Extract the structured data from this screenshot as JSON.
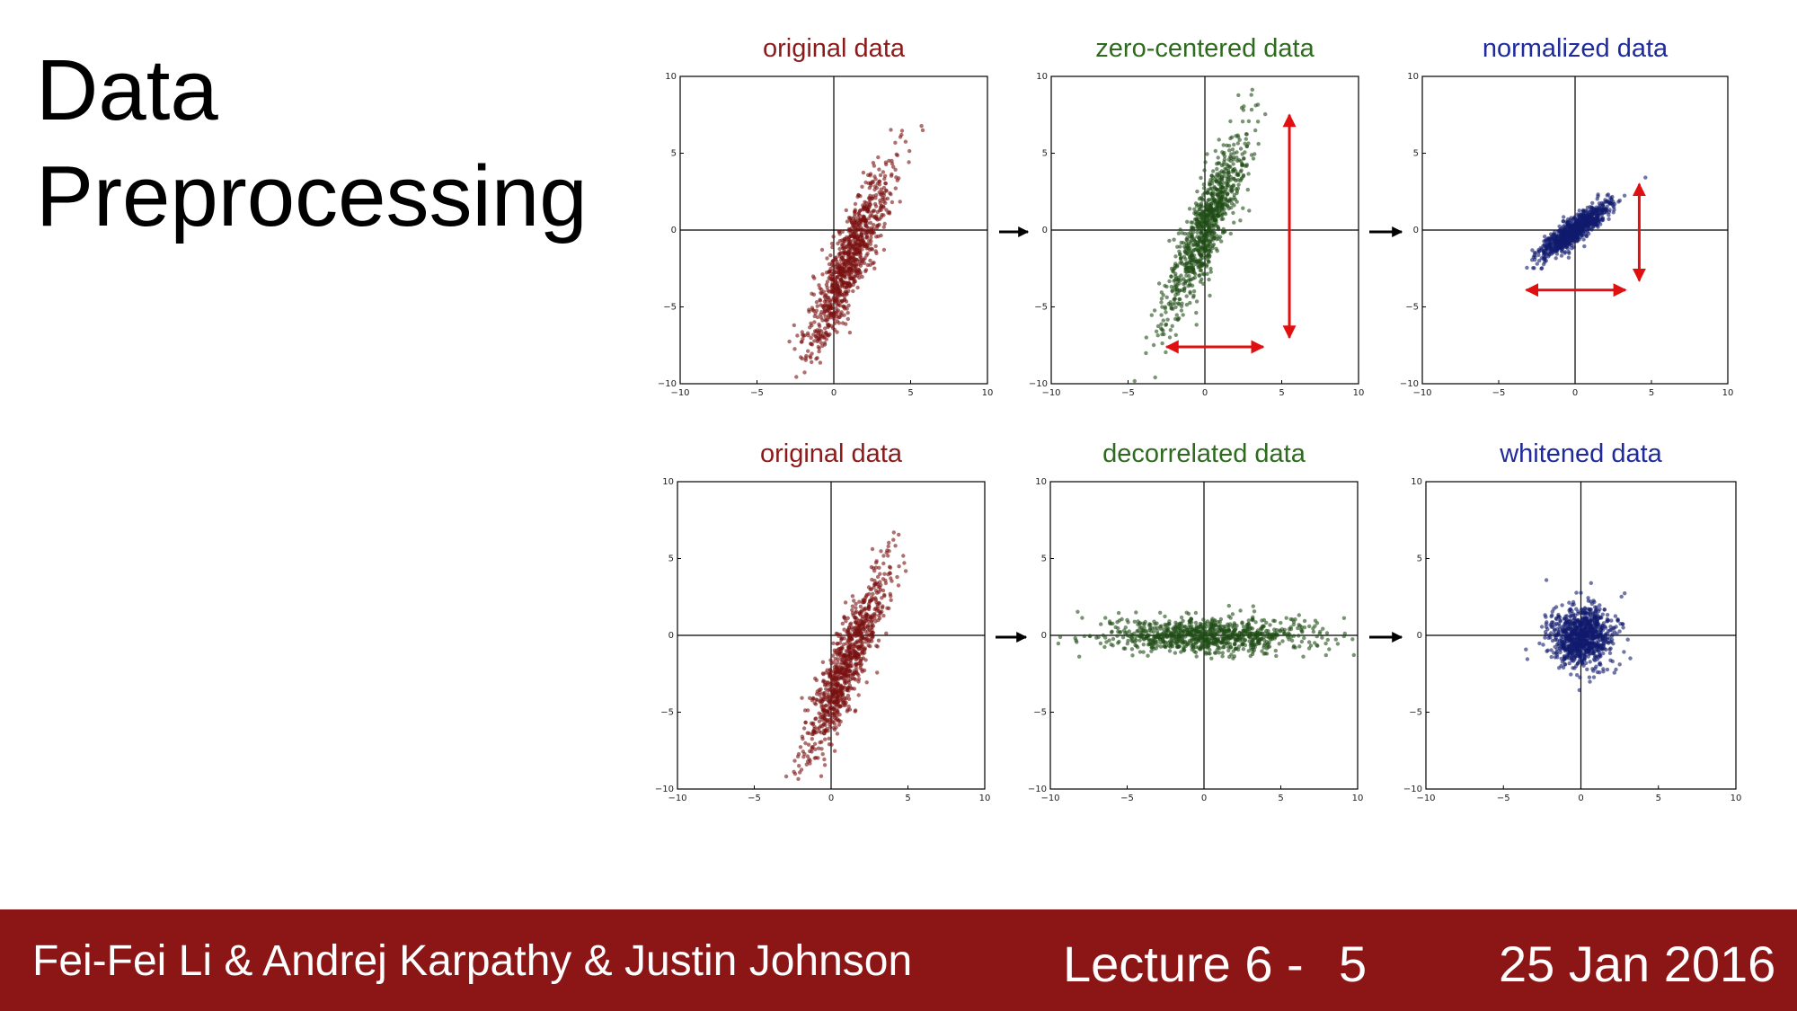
{
  "slide": {
    "title_line1": "Data",
    "title_line2": "Preprocessing"
  },
  "footer": {
    "authors": "Fei-Fei Li & Andrej Karpathy & Justin Johnson",
    "lecture": "Lecture 6 -",
    "page": "5",
    "date": "25 Jan 2016"
  },
  "chart_data": [
    {
      "type": "scatter",
      "title": "original data",
      "title_color": "#8b1a1a",
      "point_color": "#7a1010",
      "xlim": [
        -10,
        10
      ],
      "ylim": [
        -10,
        10
      ],
      "ticks": [
        -10,
        -5,
        0,
        5,
        10
      ],
      "distribution": {
        "mean": [
          1,
          -2
        ],
        "sd_major": 3.3,
        "sd_minor": 0.6,
        "angle_deg": 68
      },
      "range_arrows": []
    },
    {
      "type": "scatter",
      "title": "zero-centered data",
      "title_color": "#2e6b1f",
      "point_color": "#1f4d15",
      "xlim": [
        -10,
        10
      ],
      "ylim": [
        -10,
        10
      ],
      "ticks": [
        -10,
        -5,
        0,
        5,
        10
      ],
      "distribution": {
        "mean": [
          0,
          0
        ],
        "sd_major": 3.3,
        "sd_minor": 0.6,
        "angle_deg": 68
      },
      "range_arrows": [
        {
          "orientation": "vertical",
          "at": 5.5,
          "from": -7,
          "to": 7.5
        },
        {
          "orientation": "horizontal",
          "at": -7.6,
          "from": -2.5,
          "to": 3.8
        }
      ]
    },
    {
      "type": "scatter",
      "title": "normalized data",
      "title_color": "#1f2a9c",
      "point_color": "#101a6e",
      "xlim": [
        -10,
        10
      ],
      "ylim": [
        -10,
        10
      ],
      "ticks": [
        -10,
        -5,
        0,
        5,
        10
      ],
      "distribution": {
        "mean": [
          0,
          0
        ],
        "sd_major": 1.4,
        "sd_minor": 0.35,
        "angle_deg": 38
      },
      "range_arrows": [
        {
          "orientation": "vertical",
          "at": 4.2,
          "from": -3.3,
          "to": 3
        },
        {
          "orientation": "horizontal",
          "at": -3.9,
          "from": -3.2,
          "to": 3.3
        }
      ]
    },
    {
      "type": "scatter",
      "title": "original data",
      "title_color": "#8b1a1a",
      "point_color": "#7a1010",
      "xlim": [
        -10,
        10
      ],
      "ylim": [
        -10,
        10
      ],
      "ticks": [
        -10,
        -5,
        0,
        5,
        10
      ],
      "distribution": {
        "mean": [
          1,
          -2
        ],
        "sd_major": 3.3,
        "sd_minor": 0.6,
        "angle_deg": 68
      },
      "range_arrows": []
    },
    {
      "type": "scatter",
      "title": "decorrelated data",
      "title_color": "#2e6b1f",
      "point_color": "#1f4d15",
      "xlim": [
        -10,
        10
      ],
      "ylim": [
        -10,
        10
      ],
      "ticks": [
        -10,
        -5,
        0,
        5,
        10
      ],
      "distribution": {
        "mean": [
          0,
          0
        ],
        "sd_major": 3.3,
        "sd_minor": 0.6,
        "angle_deg": 0
      },
      "range_arrows": []
    },
    {
      "type": "scatter",
      "title": "whitened data",
      "title_color": "#1f2a9c",
      "point_color": "#101a6e",
      "xlim": [
        -10,
        10
      ],
      "ylim": [
        -10,
        10
      ],
      "ticks": [
        -10,
        -5,
        0,
        5,
        10
      ],
      "distribution": {
        "mean": [
          0,
          0
        ],
        "sd_major": 1.0,
        "sd_minor": 1.0,
        "angle_deg": 0
      },
      "range_arrows": []
    }
  ],
  "colors": {
    "footer_bg": "#8c1515",
    "range_arrow": "#e01010",
    "flow_arrow": "#000000"
  }
}
